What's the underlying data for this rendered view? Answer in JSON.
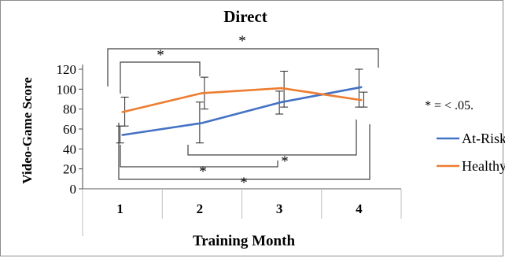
{
  "chart_data": {
    "type": "line",
    "title": "Direct",
    "xlabel": "Training Month",
    "ylabel": "Video-Game Score",
    "categories": [
      "1",
      "2",
      "3",
      "4"
    ],
    "ylim": [
      0,
      120
    ],
    "yticks": [
      0,
      20,
      40,
      60,
      80,
      100,
      120
    ],
    "grid": false,
    "legend_position": "right",
    "series": [
      {
        "name": "At-Risk",
        "color": "#4472c4",
        "values": [
          54,
          66,
          87,
          102
        ],
        "error_low": [
          46,
          46,
          75,
          82
        ],
        "error_high": [
          63,
          87,
          98,
          120
        ]
      },
      {
        "name": "Healthy",
        "color": "#ed7d31",
        "values": [
          77,
          96,
          101,
          89
        ],
        "error_low": [
          63,
          80,
          82,
          82
        ],
        "error_high": [
          92,
          112,
          118,
          97
        ]
      }
    ],
    "annotations": {
      "significance_note": "* = < .05.",
      "star": "*"
    }
  }
}
